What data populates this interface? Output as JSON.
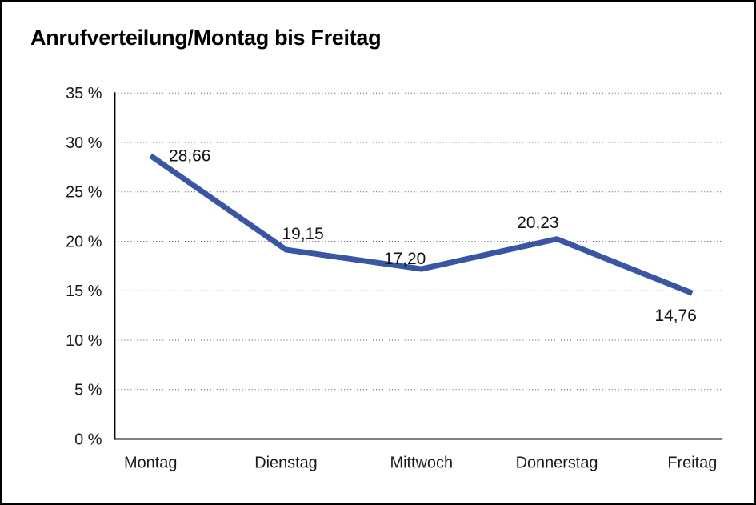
{
  "chart_data": {
    "type": "line",
    "title": "Anrufverteilung/Montag bis Freitag",
    "categories": [
      "Montag",
      "Dienstag",
      "Mittwoch",
      "Donnerstag",
      "Freitag"
    ],
    "series": [
      {
        "name": "Anrufverteilung",
        "values": [
          28.66,
          19.15,
          17.2,
          20.23,
          14.76
        ]
      }
    ],
    "value_labels": [
      "28,66",
      "19,15",
      "17,20",
      "20,23",
      "14,76"
    ],
    "xlabel": "",
    "ylabel": "",
    "ylim": [
      0,
      35
    ],
    "ytick_step": 5,
    "ytick_labels": [
      "0 %",
      "5 %",
      "10 %",
      "15 %",
      "20 %",
      "25 %",
      "30 %",
      "35 %"
    ],
    "grid": "horizontal-dotted",
    "legend_position": "none",
    "line_color": "#3856A3",
    "grid_color": "#555555",
    "axis_color": "#000000",
    "text_color": "#111111",
    "background_color": "#ffffff",
    "border_color": "#000000"
  }
}
